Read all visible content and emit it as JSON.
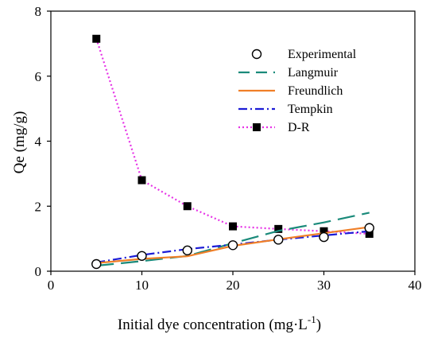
{
  "chart_data": {
    "type": "line",
    "title": "",
    "xlabel": "Initial dye concentration (mg·L",
    "xlabel_superscript": "-1",
    "xlabel_suffix": ")",
    "ylabel": "Qe (mg/g)",
    "xlim": [
      0,
      40
    ],
    "ylim": [
      0,
      8
    ],
    "xticks": [
      0,
      10,
      20,
      30,
      40
    ],
    "yticks": [
      0,
      2,
      4,
      6,
      8
    ],
    "grid": false,
    "legend_position": "top-right",
    "series": [
      {
        "name": "Experimental",
        "style": "open-circle",
        "color": "#000000",
        "x": [
          5,
          10,
          15,
          20,
          25,
          30,
          35
        ],
        "y": [
          0.22,
          0.47,
          0.64,
          0.8,
          0.97,
          1.05,
          1.33
        ]
      },
      {
        "name": "Langmuir",
        "style": "long-dash",
        "color": "#1a8a7a",
        "x": [
          5,
          10,
          15,
          20,
          25,
          30,
          35
        ],
        "y": [
          0.17,
          0.31,
          0.47,
          0.86,
          1.24,
          1.5,
          1.8
        ]
      },
      {
        "name": "Freundlich",
        "style": "solid",
        "color": "#f07f28",
        "x": [
          5,
          10,
          15,
          20,
          25,
          30,
          35
        ],
        "y": [
          0.25,
          0.38,
          0.46,
          0.78,
          0.98,
          1.17,
          1.36
        ]
      },
      {
        "name": "Tempkin",
        "style": "dash-dot",
        "color": "#1c1cd6",
        "x": [
          5,
          10,
          15,
          20,
          25,
          30,
          35
        ],
        "y": [
          0.27,
          0.5,
          0.68,
          0.82,
          0.97,
          1.1,
          1.23
        ]
      },
      {
        "name": "D-R",
        "style": "dotted-square",
        "color": "#e632e6",
        "x": [
          5,
          10,
          15,
          20,
          25,
          30,
          35
        ],
        "y": [
          7.15,
          2.8,
          2.0,
          1.38,
          1.3,
          1.23,
          1.15
        ]
      }
    ]
  }
}
